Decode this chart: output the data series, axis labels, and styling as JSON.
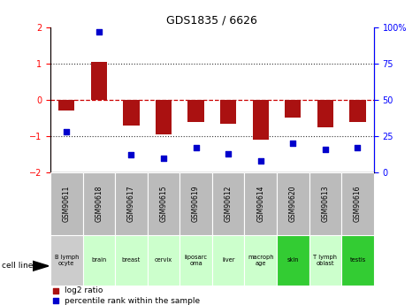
{
  "title": "GDS1835 / 6626",
  "gsm_labels": [
    "GSM90611",
    "GSM90618",
    "GSM90617",
    "GSM90615",
    "GSM90619",
    "GSM90612",
    "GSM90614",
    "GSM90620",
    "GSM90613",
    "GSM90616"
  ],
  "cell_line_labels": [
    "B lymph\nocyte",
    "brain",
    "breast",
    "cervix",
    "liposarc\noma",
    "liver",
    "macroph\nage",
    "skin",
    "T lymph\noblast",
    "testis"
  ],
  "cell_line_colors": [
    "#cccccc",
    "#ccffcc",
    "#ccffcc",
    "#ccffcc",
    "#ccffcc",
    "#ccffcc",
    "#ccffcc",
    "#33cc33",
    "#ccffcc",
    "#33cc33"
  ],
  "log2_ratio": [
    -0.3,
    1.05,
    -0.7,
    -0.95,
    -0.6,
    -0.65,
    -1.1,
    -0.5,
    -0.75,
    -0.6
  ],
  "percentile_rank": [
    28,
    97,
    12,
    10,
    17,
    13,
    8,
    20,
    16,
    17
  ],
  "ylim": [
    -2.0,
    2.0
  ],
  "y2lim": [
    0,
    100
  ],
  "yticks_left": [
    -2,
    -1,
    0,
    1,
    2
  ],
  "yticks_right": [
    0,
    25,
    50,
    75,
    100
  ],
  "bar_color": "#aa1111",
  "dot_color": "#0000cc",
  "zero_line_color": "#cc0000",
  "dotted_line_color": "#333333",
  "legend_log2": "log2 ratio",
  "legend_pct": "percentile rank within the sample",
  "gsm_bg_color": "#bbbbbb",
  "bar_width": 0.5
}
